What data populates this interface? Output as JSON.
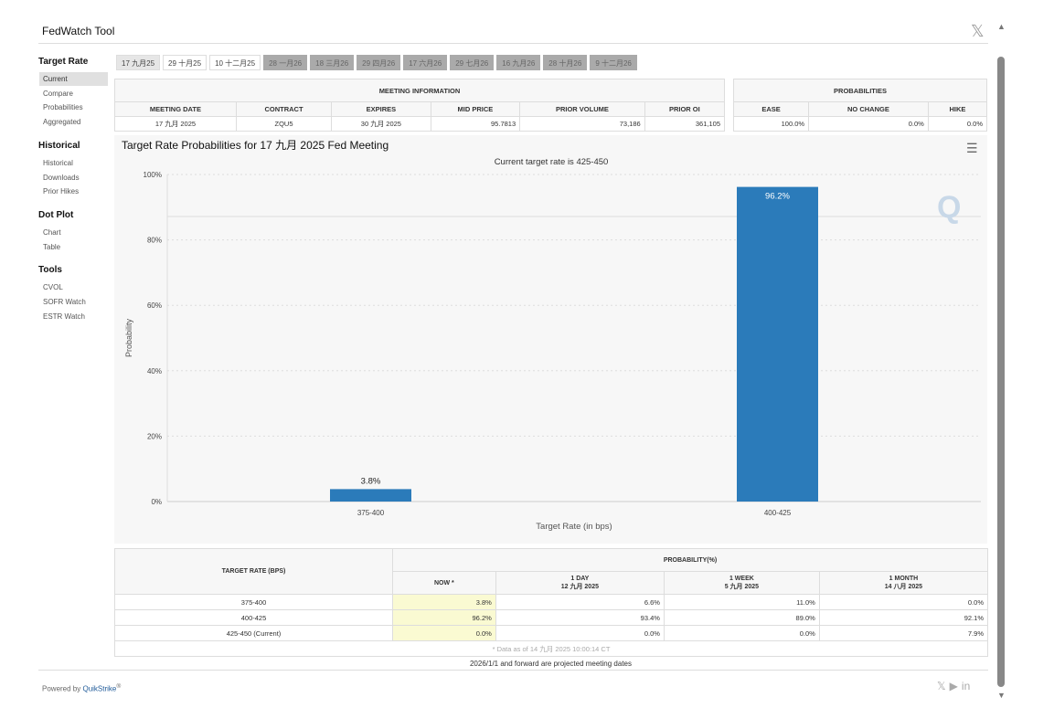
{
  "header": {
    "title": "FedWatch Tool",
    "close_icon": "x-logo-icon"
  },
  "sidebar": [
    {
      "heading": "Target Rate",
      "items": [
        "Current",
        "Compare",
        "Probabilities",
        "Aggregated"
      ]
    },
    {
      "heading": "Historical",
      "items": [
        "Historical",
        "Downloads",
        "Prior Hikes"
      ]
    },
    {
      "heading": "Dot Plot",
      "items": [
        "Chart",
        "Table"
      ]
    },
    {
      "heading": "Tools",
      "items": [
        "CVOL",
        "SOFR Watch",
        "ESTR Watch"
      ]
    }
  ],
  "active_item": "Current",
  "tabs": [
    {
      "label": "17 九月25",
      "state": "selected"
    },
    {
      "label": "29 十月25",
      "state": "normal"
    },
    {
      "label": "10 十二月25",
      "state": "normal"
    },
    {
      "label": "28 一月26",
      "state": "disabled"
    },
    {
      "label": "18 三月26",
      "state": "disabled"
    },
    {
      "label": "29 四月26",
      "state": "disabled"
    },
    {
      "label": "17 六月26",
      "state": "disabled"
    },
    {
      "label": "29 七月26",
      "state": "disabled"
    },
    {
      "label": "16 九月26",
      "state": "disabled"
    },
    {
      "label": "28 十月26",
      "state": "disabled"
    },
    {
      "label": "9 十二月26",
      "state": "disabled"
    }
  ],
  "meeting_info": {
    "title": "MEETING INFORMATION",
    "headers": [
      "MEETING DATE",
      "CONTRACT",
      "EXPIRES",
      "MID PRICE",
      "PRIOR VOLUME",
      "PRIOR OI"
    ],
    "row": [
      "17 九月 2025",
      "ZQU5",
      "30 九月 2025",
      "95.7813",
      "73,186",
      "361,105"
    ]
  },
  "probabilities": {
    "title": "PROBABILITIES",
    "headers": [
      "EASE",
      "NO CHANGE",
      "HIKE"
    ],
    "row": [
      "100.0%",
      "0.0%",
      "0.0%"
    ]
  },
  "chart_data": {
    "type": "bar",
    "title": "Target Rate Probabilities for 17 九月 2025 Fed Meeting",
    "subtitle": "Current target rate is 425-450",
    "xlabel": "Target Rate (in bps)",
    "ylabel": "Probability",
    "categories": [
      "375-400",
      "400-425"
    ],
    "values": [
      3.8,
      96.2
    ],
    "data_labels": [
      "3.8%",
      "96.2%"
    ],
    "ylim": [
      0,
      100
    ],
    "yticks": [
      "0%",
      "20%",
      "40%",
      "60%",
      "80%",
      "100%"
    ],
    "grid": true,
    "color": "#2b7bba",
    "menu_icon": "hamburger-menu-icon"
  },
  "bottom_table": {
    "rate_header": "TARGET RATE (BPS)",
    "prob_header": "PROBABILITY(%)",
    "cols": [
      {
        "l1": "NOW *",
        "l2": ""
      },
      {
        "l1": "1 DAY",
        "l2": "12 九月 2025"
      },
      {
        "l1": "1 WEEK",
        "l2": "5 九月 2025"
      },
      {
        "l1": "1 MONTH",
        "l2": "14 八月 2025"
      }
    ],
    "rows": [
      {
        "rate": "375-400",
        "vals": [
          "3.8%",
          "6.6%",
          "11.0%",
          "0.0%"
        ]
      },
      {
        "rate": "400-425",
        "vals": [
          "96.2%",
          "93.4%",
          "89.0%",
          "92.1%"
        ]
      },
      {
        "rate": "425-450 (Current)",
        "vals": [
          "0.0%",
          "0.0%",
          "0.0%",
          "7.9%"
        ]
      }
    ],
    "note": "* Data as of 14 九月 2025 10:00:14 CT"
  },
  "footnote": "2026/1/1 and forward are projected meeting dates",
  "footer": {
    "powered": "Powered by ",
    "brand": "QuikStrike",
    "reg": "®",
    "social": [
      "x-icon",
      "youtube-icon",
      "linkedin-icon"
    ]
  }
}
